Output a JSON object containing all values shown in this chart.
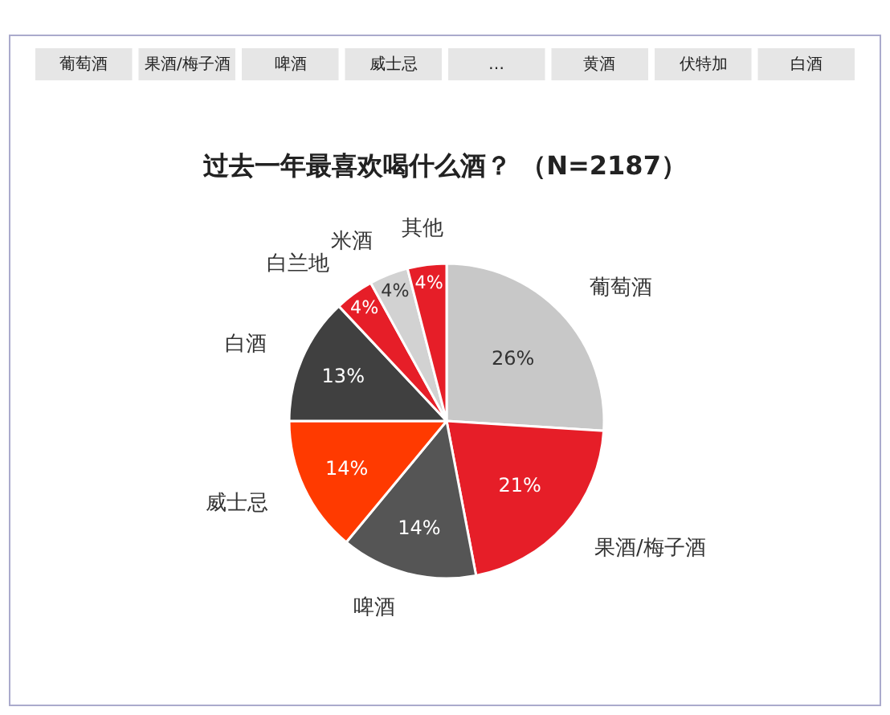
{
  "chart_data": {
    "type": "pie",
    "title": "过去一年最喜欢喝什么酒？ （N=2187）",
    "categories": [
      "葡萄酒",
      "果酒/梅子酒",
      "啤酒",
      "威士忌",
      "白酒",
      "白兰地",
      "米酒",
      "其他"
    ],
    "values": [
      26,
      21,
      14,
      14,
      13,
      4,
      4,
      4
    ],
    "value_labels": [
      "26%",
      "21%",
      "14%",
      "14%",
      "13%",
      "4%",
      "4%",
      "4%"
    ],
    "colors": [
      "#c8c8c8",
      "#e61e28",
      "#555555",
      "#ff3a00",
      "#404040",
      "#e61e28",
      "#d2d2d2",
      "#e61e28"
    ],
    "annotations": [
      "葡萄酒",
      "果酒/梅子酒",
      "啤酒",
      "威士忌",
      "…",
      "黄酒",
      "伏特加",
      "白酒"
    ],
    "legend": false
  }
}
